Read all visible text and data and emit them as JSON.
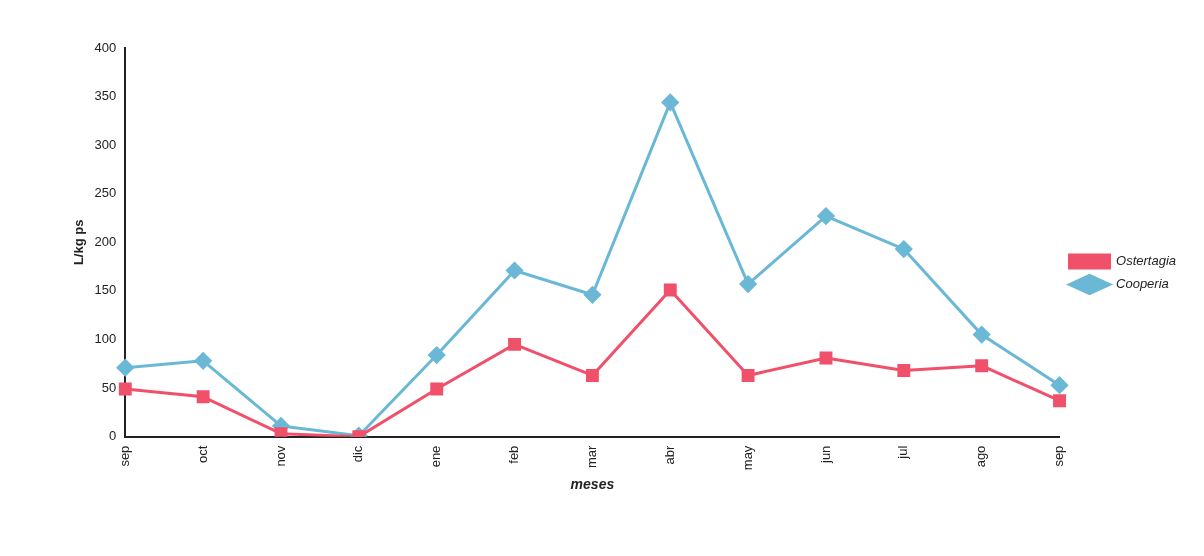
{
  "chart_data": {
    "type": "line",
    "xlabel": "meses",
    "ylabel": "L/kg ps",
    "categories": [
      "sep",
      "oct",
      "nov",
      "dic",
      "ene",
      "feb",
      "mar",
      "abr",
      "may",
      "jun",
      "jul",
      "ago",
      "sep"
    ],
    "series": [
      {
        "name": "Cooperia",
        "color": "#6ab8d6",
        "marker": "diamond",
        "values": [
          71,
          78,
          11,
          1,
          84,
          171,
          146,
          344,
          157,
          227,
          193,
          105,
          53
        ]
      },
      {
        "name": "Ostertagia",
        "color": "#f0506a",
        "marker": "square",
        "values": [
          49,
          41,
          3,
          0,
          49,
          95,
          63,
          151,
          63,
          81,
          68,
          73,
          37
        ]
      }
    ],
    "ylim": [
      0,
      400
    ],
    "yticks": [
      0,
      50,
      100,
      150,
      200,
      250,
      300,
      350,
      400
    ],
    "grid": false,
    "legend": "right",
    "line_style": "solid"
  }
}
